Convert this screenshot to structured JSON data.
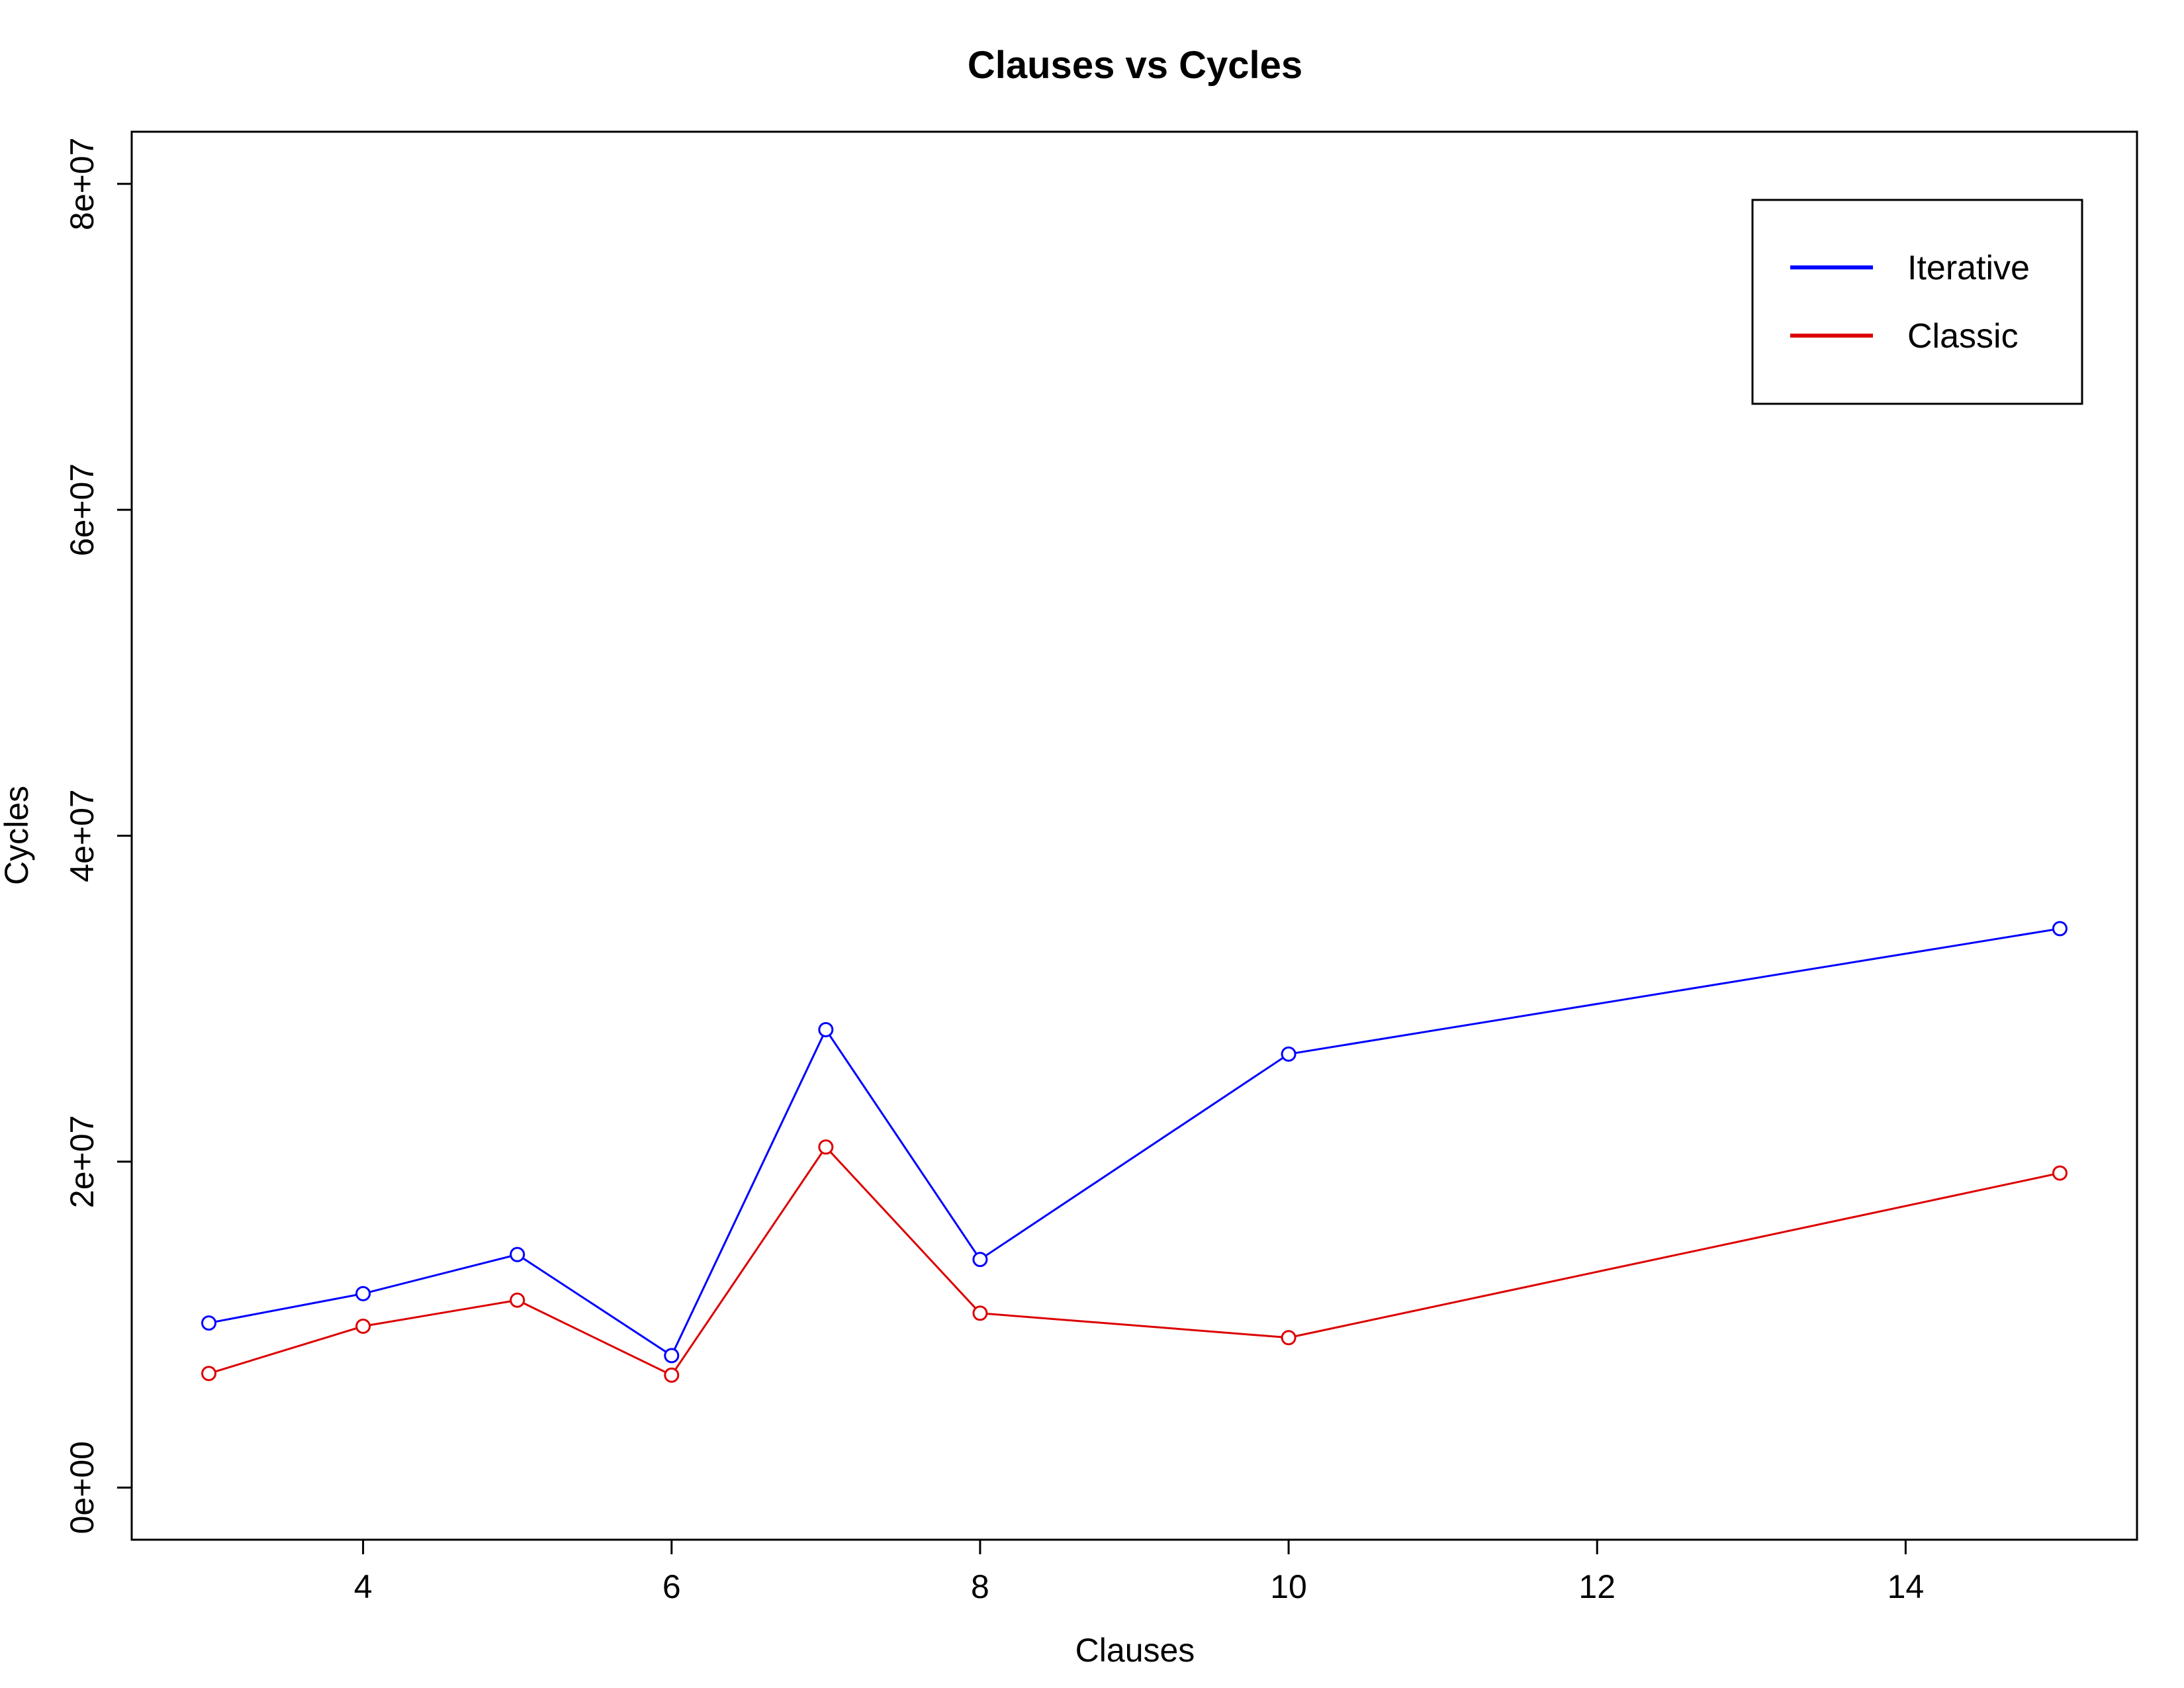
{
  "chart_data": {
    "type": "line",
    "title": "Clauses vs Cycles",
    "xlabel": "Clauses",
    "ylabel": "Cycles",
    "xlim": [
      2.5,
      15.5
    ],
    "ylim": [
      -3200000,
      83200000
    ],
    "xticks": [
      4,
      6,
      8,
      10,
      12,
      14
    ],
    "xtick_labels": [
      "4",
      "6",
      "8",
      "10",
      "12",
      "14"
    ],
    "yticks": [
      0,
      20000000,
      40000000,
      60000000,
      80000000
    ],
    "ytick_labels": [
      "0e+00",
      "2e+07",
      "4e+07",
      "6e+07",
      "8e+07"
    ],
    "x": [
      3,
      4,
      5,
      6,
      7,
      8,
      10,
      15
    ],
    "series": [
      {
        "name": "Iterative",
        "color": "#0000ff",
        "marker": "open-circle",
        "values": [
          10100000,
          11900000,
          14300000,
          8100000,
          28100000,
          14000000,
          26600000,
          34300000
        ]
      },
      {
        "name": "Classic",
        "color": "#dd0000",
        "marker": "open-circle",
        "values": [
          7000000,
          9900000,
          11500000,
          6900000,
          20900000,
          10700000,
          9200000,
          19300000
        ]
      }
    ],
    "grid": false,
    "legend_position": "top-right"
  }
}
